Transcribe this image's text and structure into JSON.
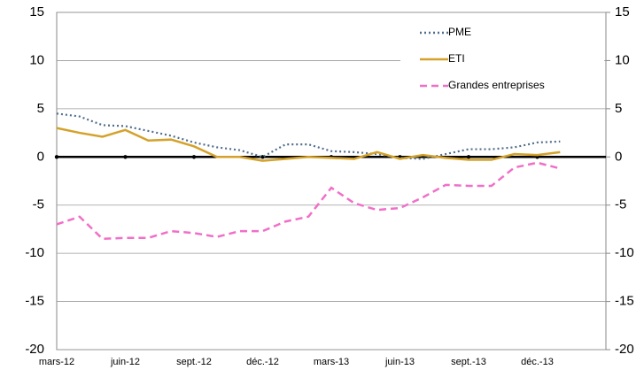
{
  "chart_data": {
    "type": "line",
    "categories": [
      "mars-12",
      null,
      null,
      "juin-12",
      null,
      null,
      "sept.-12",
      null,
      null,
      "déc.-12",
      null,
      null,
      "mars-13",
      null,
      null,
      "juin-13",
      null,
      null,
      "sept.-13",
      null,
      null,
      "déc.-13",
      null,
      null
    ],
    "series": [
      {
        "name": "PME",
        "color": "#4f6d8a",
        "dash": "dotted",
        "values": [
          4.5,
          4.2,
          3.3,
          3.2,
          2.7,
          2.2,
          1.5,
          1.0,
          0.7,
          0.0,
          1.3,
          1.3,
          0.6,
          0.5,
          0.3,
          -0.1,
          -0.2,
          0.3,
          0.8,
          0.8,
          1.0,
          1.5,
          1.6,
          null
        ]
      },
      {
        "name": "ETI",
        "color": "#d4a22a",
        "dash": "solid",
        "values": [
          3.0,
          2.5,
          2.1,
          2.8,
          1.7,
          1.8,
          1.1,
          0.0,
          0.0,
          -0.4,
          -0.2,
          0.0,
          -0.1,
          -0.2,
          0.5,
          -0.2,
          0.2,
          -0.1,
          -0.3,
          -0.3,
          0.3,
          0.2,
          0.5,
          null
        ]
      },
      {
        "name": "Grandes entreprises",
        "color": "#f06fc8",
        "dash": "dashed",
        "values": [
          -7.0,
          -6.2,
          -8.5,
          -8.4,
          -8.4,
          -7.7,
          -7.9,
          -8.3,
          -7.7,
          -7.7,
          -6.7,
          -6.2,
          -3.2,
          -4.8,
          -5.5,
          -5.3,
          -4.2,
          -2.9,
          -3.0,
          -3.0,
          -1.1,
          -0.6,
          -1.2,
          null
        ]
      }
    ],
    "ylim": [
      -20,
      15
    ],
    "yticks": [
      -20,
      -15,
      -10,
      -5,
      0,
      5,
      10,
      15
    ],
    "y2lim": [
      -20,
      15
    ],
    "y2ticks": [
      -20,
      -15,
      -10,
      -5,
      0,
      5,
      10,
      15
    ],
    "grid": true,
    "legend": "top-right"
  }
}
